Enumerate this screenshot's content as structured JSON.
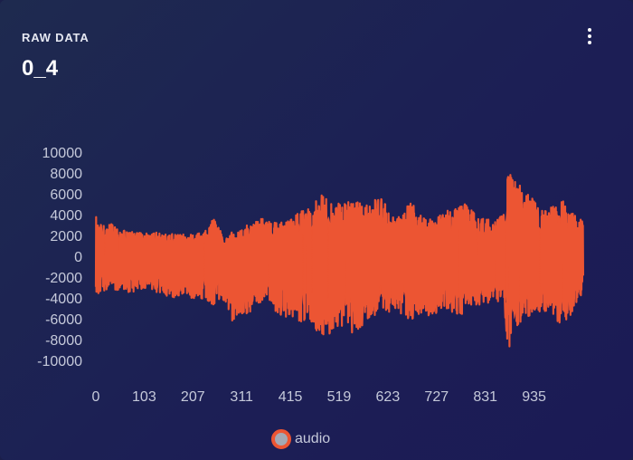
{
  "card": {
    "label": "RAW DATA",
    "value": "0_4",
    "menu_icon": "more-vertical-icon"
  },
  "colors": {
    "series": "#ec5533",
    "tick_text": "#c5c9da",
    "legend_swatch_fill": "#a4a8b4"
  },
  "chart_data": {
    "type": "line",
    "title": "",
    "xlabel": "",
    "ylabel": "",
    "ylim": [
      -10000,
      10000
    ],
    "xlim": [
      0,
      1040
    ],
    "y_ticks": [
      "10000",
      "8000",
      "6000",
      "4000",
      "2000",
      "0",
      "-2000",
      "-4000",
      "-6000",
      "-8000",
      "-10000"
    ],
    "x_ticks": [
      "0",
      "103",
      "207",
      "311",
      "415",
      "519",
      "623",
      "727",
      "831",
      "935"
    ],
    "grid": false,
    "legend_position": "bottom",
    "series": [
      {
        "name": "audio",
        "color": "#ec5533",
        "envelope_x": [
          0,
          5,
          15,
          30,
          50,
          70,
          90,
          110,
          130,
          150,
          170,
          190,
          210,
          230,
          250,
          270,
          290,
          310,
          330,
          350,
          370,
          390,
          410,
          430,
          450,
          470,
          490,
          510,
          530,
          550,
          570,
          590,
          610,
          630,
          650,
          670,
          690,
          710,
          730,
          750,
          770,
          790,
          810,
          830,
          850,
          870,
          880,
          890,
          910,
          930,
          950,
          970,
          990,
          1010,
          1030,
          1040
        ],
        "envelope_max": [
          4000,
          3200,
          3000,
          3300,
          2600,
          2400,
          2300,
          2200,
          2400,
          2100,
          2200,
          2100,
          2200,
          2300,
          3800,
          2200,
          2400,
          2600,
          3200,
          3700,
          3300,
          3200,
          3400,
          4200,
          4500,
          5400,
          6400,
          5300,
          5000,
          5500,
          5000,
          5500,
          5800,
          3800,
          3800,
          5400,
          4100,
          3500,
          3800,
          4400,
          4600,
          5200,
          4000,
          3600,
          3400,
          4000,
          8100,
          7600,
          6500,
          5700,
          4500,
          4600,
          6000,
          4400,
          3600,
          3400
        ],
        "envelope_min": [
          -3900,
          -3700,
          -3300,
          -3400,
          -3200,
          -3500,
          -3300,
          -3000,
          -3500,
          -3800,
          -4000,
          -3600,
          -4200,
          -4100,
          -4800,
          -4000,
          -6300,
          -5600,
          -5500,
          -4800,
          -4600,
          -5600,
          -6100,
          -6300,
          -6400,
          -7400,
          -7600,
          -7300,
          -6500,
          -7600,
          -6600,
          -5800,
          -5400,
          -5600,
          -5600,
          -6100,
          -5700,
          -5700,
          -5400,
          -5000,
          -5800,
          -5400,
          -4900,
          -4600,
          -4600,
          -4000,
          -9300,
          -8700,
          -6500,
          -5500,
          -5400,
          -5200,
          -6600,
          -5900,
          -4000,
          -3800
        ]
      }
    ]
  },
  "legend": {
    "label": "audio"
  }
}
